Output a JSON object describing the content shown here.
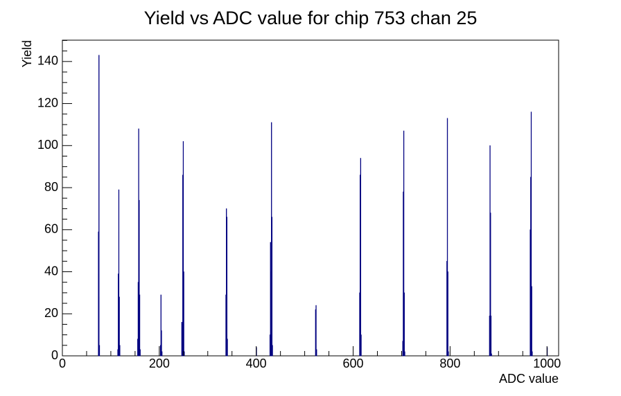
{
  "chart_data": {
    "type": "histogram",
    "title": "Yield vs ADC value for chip 753 chan 25",
    "x_label": "ADC value",
    "y_label": "Yield",
    "color": "#000080",
    "bins": [
      0,
      74,
      75,
      76,
      77,
      114,
      115,
      116,
      117,
      118,
      119,
      155,
      156,
      157,
      158,
      159,
      160,
      161,
      202,
      203,
      204,
      205,
      206,
      246,
      247,
      248,
      249,
      250,
      251,
      252,
      337,
      338,
      339,
      340,
      341,
      400,
      401,
      428,
      429,
      430,
      431,
      432,
      433,
      434,
      522,
      523,
      524,
      525,
      613,
      614,
      615,
      616,
      617,
      702,
      703,
      704,
      705,
      706,
      707,
      793,
      794,
      795,
      796,
      797,
      881,
      882,
      883,
      884,
      885,
      886,
      965,
      966,
      967,
      968,
      969,
      970,
      1000,
      1001,
      1024
    ],
    "counts": [
      0,
      59,
      143,
      5,
      0,
      3,
      39,
      79,
      28,
      5,
      0,
      8,
      35,
      108,
      74,
      29,
      3,
      0,
      5,
      29,
      12,
      2,
      0,
      16,
      15,
      86,
      102,
      40,
      2,
      0,
      29,
      70,
      66,
      8,
      0,
      4,
      0,
      10,
      54,
      40,
      111,
      66,
      5,
      0,
      22,
      24,
      3,
      0,
      30,
      86,
      94,
      10,
      0,
      7,
      78,
      107,
      30,
      2,
      0,
      45,
      113,
      40,
      2,
      0,
      19,
      100,
      68,
      19,
      1,
      0,
      60,
      85,
      116,
      33,
      2,
      0,
      4,
      0
    ],
    "xlim": [
      0,
      1024
    ],
    "ylim": [
      0,
      150.15
    ],
    "xticks": [
      0,
      200,
      400,
      600,
      800,
      1000
    ],
    "yticks": [
      0,
      20,
      40,
      60,
      80,
      100,
      120,
      140
    ],
    "xminorticks": [
      50,
      100,
      150,
      250,
      300,
      350,
      450,
      500,
      550,
      650,
      700,
      750,
      850,
      900,
      950
    ],
    "yminorticks": [
      5,
      10,
      15,
      25,
      30,
      35,
      45,
      50,
      55,
      65,
      70,
      75,
      85,
      90,
      95,
      105,
      110,
      115,
      125,
      130,
      135,
      145,
      150
    ]
  }
}
